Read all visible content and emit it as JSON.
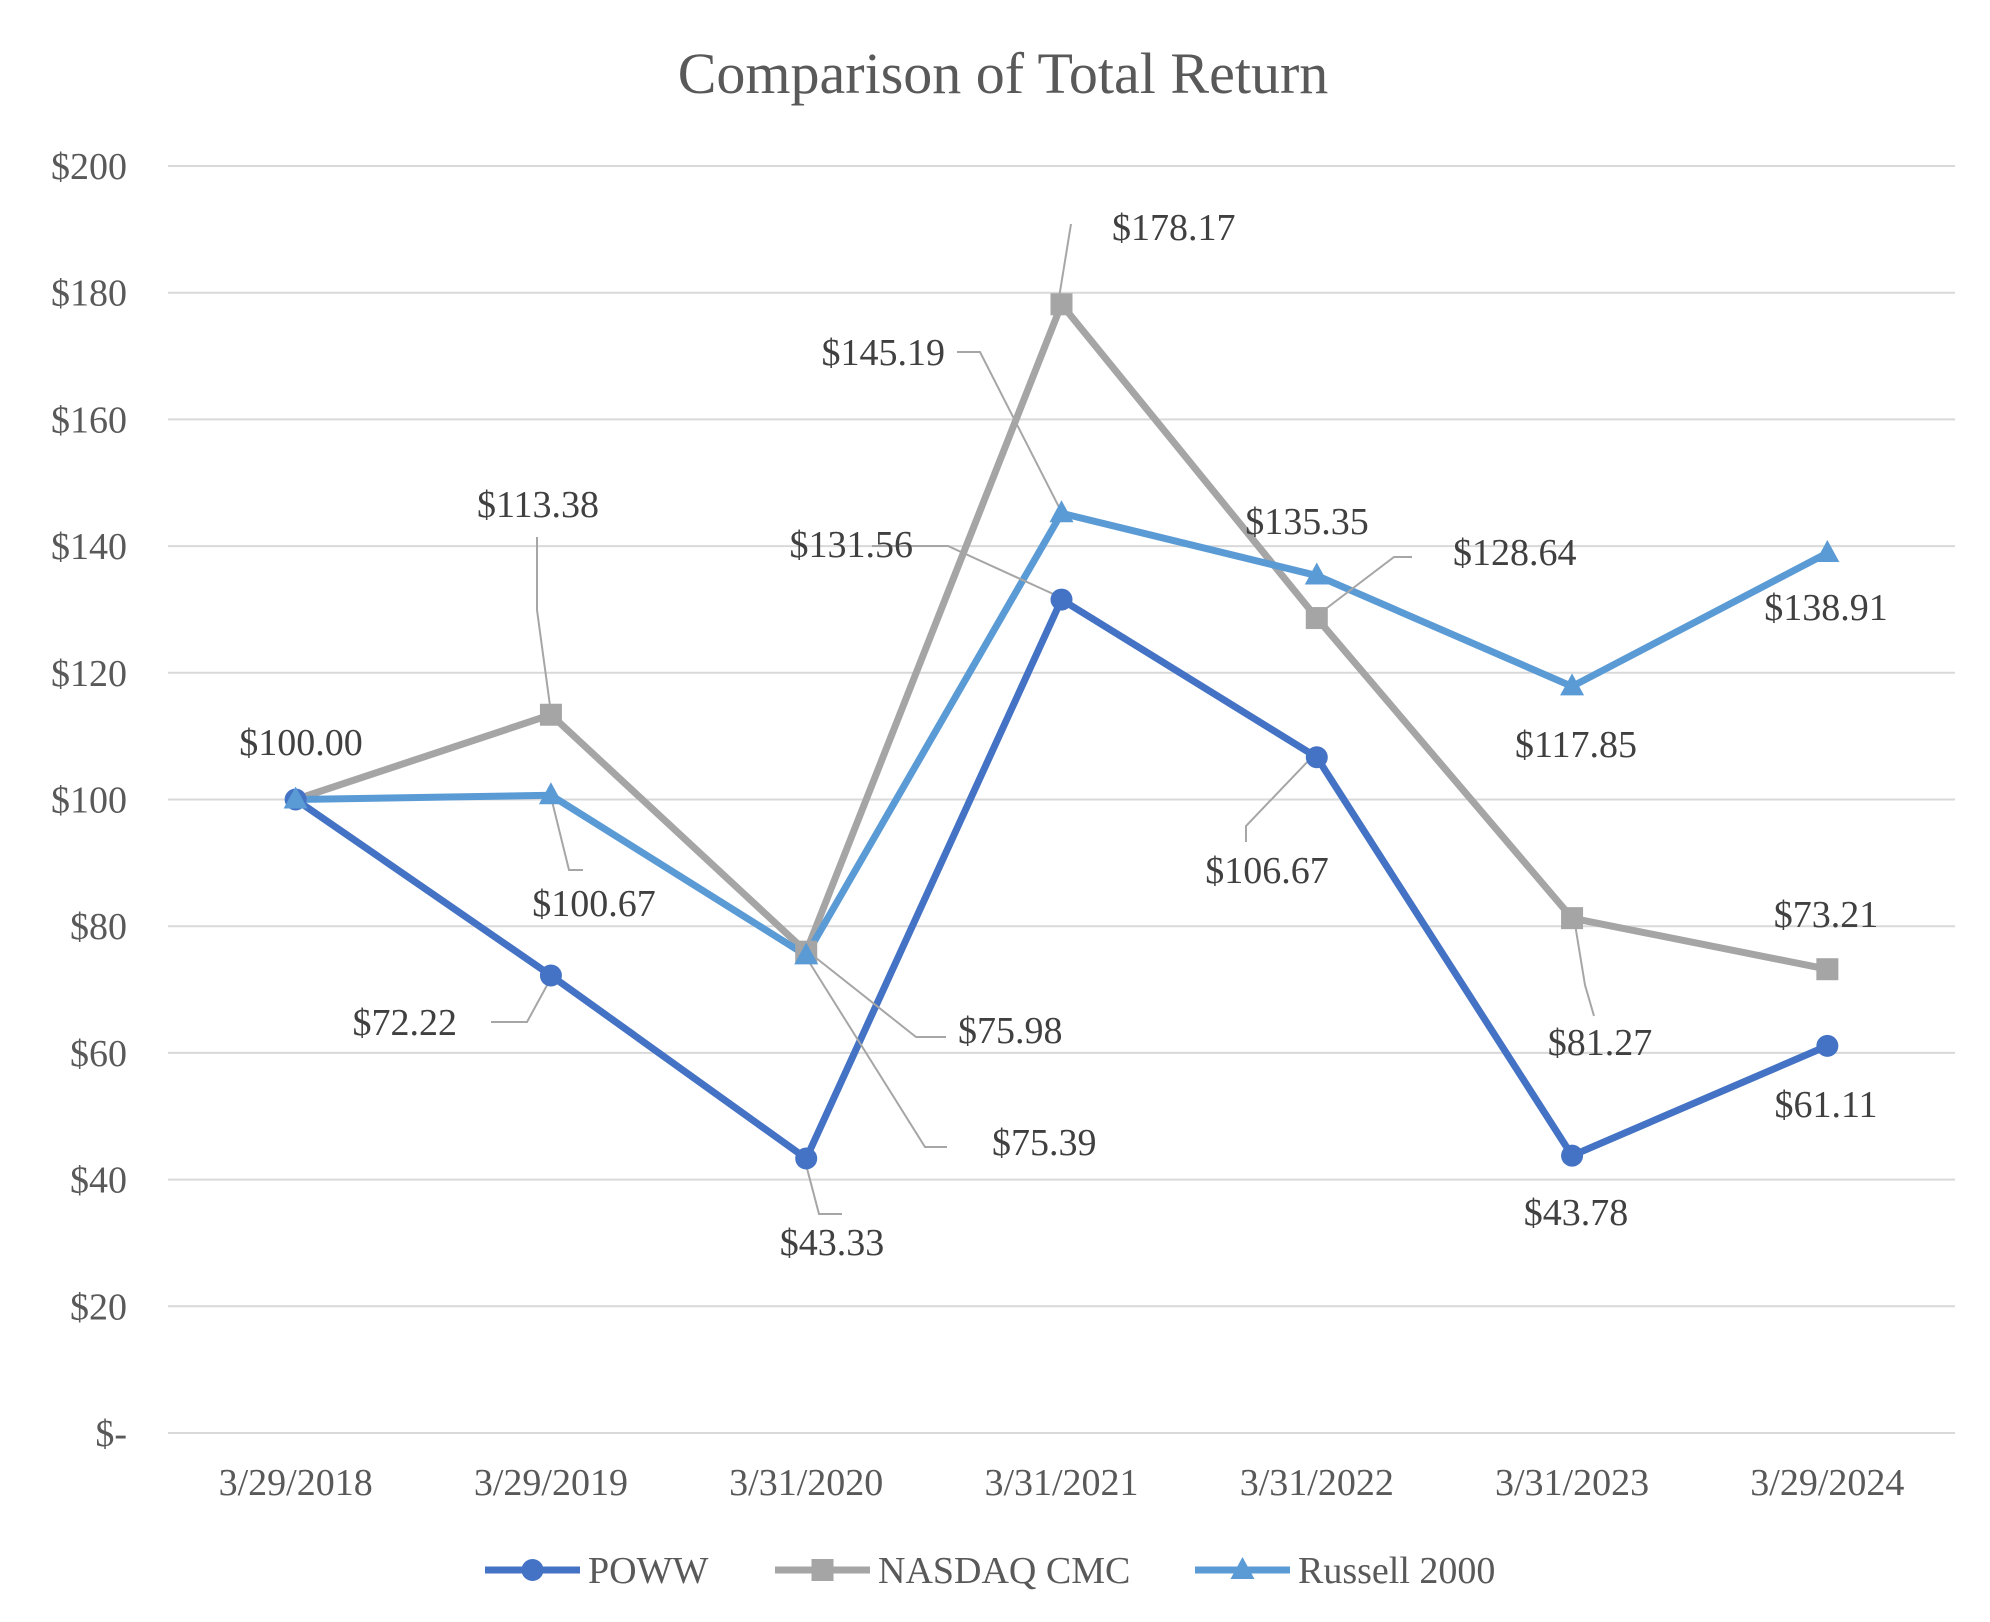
{
  "chart_data": {
    "type": "line",
    "title": "Comparison of Total Return",
    "xlabel": "",
    "ylabel": "",
    "categories": [
      "3/29/2018",
      "3/29/2019",
      "3/31/2020",
      "3/31/2021",
      "3/31/2022",
      "3/31/2023",
      "3/29/2024"
    ],
    "ylim": [
      0,
      200
    ],
    "yticks": [
      {
        "value": 0,
        "label": "$-"
      },
      {
        "value": 20,
        "label": "$20"
      },
      {
        "value": 40,
        "label": "$40"
      },
      {
        "value": 60,
        "label": "$60"
      },
      {
        "value": 80,
        "label": "$80"
      },
      {
        "value": 100,
        "label": "$100"
      },
      {
        "value": 120,
        "label": "$120"
      },
      {
        "value": 140,
        "label": "$140"
      },
      {
        "value": 160,
        "label": "$160"
      },
      {
        "value": 180,
        "label": "$180"
      },
      {
        "value": 200,
        "label": "$200"
      }
    ],
    "grid": true,
    "legend": "bottom",
    "series": [
      {
        "name": "POWW",
        "color": "#4472c4",
        "marker": "circle",
        "values": [
          100.0,
          72.22,
          43.33,
          131.56,
          106.67,
          43.78,
          61.11
        ],
        "labels": [
          "$100.00",
          "$72.22",
          "$43.33",
          "$131.56",
          "$106.67",
          "$43.78",
          "$61.11"
        ]
      },
      {
        "name": "NASDAQ CMC",
        "color": "#a5a5a5",
        "marker": "square",
        "values": [
          100.0,
          113.38,
          75.98,
          178.17,
          128.64,
          81.27,
          73.21
        ],
        "labels": [
          "$100.00",
          "$113.38",
          "$75.98",
          "$178.17",
          "$128.64",
          "$81.27",
          "$73.21"
        ]
      },
      {
        "name": "Russell 2000",
        "color": "#5b9bd5",
        "marker": "triangle",
        "values": [
          100.0,
          100.67,
          75.39,
          145.19,
          135.35,
          117.85,
          138.91
        ],
        "labels": [
          "$100.00",
          "$100.67",
          "$75.39",
          "$145.19",
          "$135.35",
          "$117.85",
          "$138.91"
        ]
      }
    ]
  }
}
